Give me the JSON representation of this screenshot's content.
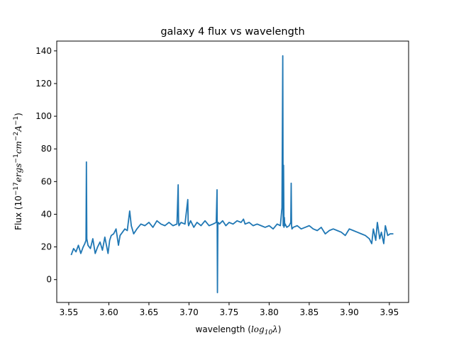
{
  "chart_data": {
    "type": "line",
    "title": "galaxy 4 flux vs wavelength",
    "xlabel_text": "wavelength (",
    "xlabel_math": "log",
    "xlabel_sub": "10",
    "xlabel_lambda": "λ",
    "xlabel_close": ")",
    "ylabel_text": "Flux (10",
    "ylabel_sup1": "−17",
    "ylabel_unit1": "ergs",
    "ylabel_sup2": "−1",
    "ylabel_unit2": "cm",
    "ylabel_sup3": "−2",
    "ylabel_unit3": "A",
    "ylabel_sup4": "−1",
    "ylabel_close": ")",
    "xlim": [
      3.535,
      3.974
    ],
    "ylim": [
      -14,
      146
    ],
    "xticks": [
      3.55,
      3.6,
      3.65,
      3.7,
      3.75,
      3.8,
      3.85,
      3.9,
      3.95
    ],
    "xtick_labels": [
      "3.55",
      "3.60",
      "3.65",
      "3.70",
      "3.75",
      "3.80",
      "3.85",
      "3.90",
      "3.95"
    ],
    "yticks": [
      0,
      20,
      40,
      60,
      80,
      100,
      120,
      140
    ],
    "ytick_labels": [
      "0",
      "20",
      "40",
      "60",
      "80",
      "100",
      "120",
      "140"
    ],
    "grid": false,
    "line_color": "#1f77b4",
    "series": [
      {
        "x": [
          3.553,
          3.556,
          3.559,
          3.562,
          3.565,
          3.568,
          3.57,
          3.5715,
          3.572,
          3.5725,
          3.574,
          3.577,
          3.58,
          3.583,
          3.586,
          3.589,
          3.592,
          3.595,
          3.597,
          3.599,
          3.601,
          3.603,
          3.606,
          3.609,
          3.612,
          3.614,
          3.617,
          3.62,
          3.623,
          3.626,
          3.628,
          3.631,
          3.635,
          3.64,
          3.645,
          3.65,
          3.655,
          3.66,
          3.665,
          3.67,
          3.675,
          3.68,
          3.685,
          3.6865,
          3.687,
          3.6875,
          3.69,
          3.695,
          3.6985,
          3.699,
          3.6995,
          3.702,
          3.706,
          3.71,
          3.715,
          3.72,
          3.725,
          3.73,
          3.734,
          3.735,
          3.7355,
          3.736,
          3.7365,
          3.738,
          3.742,
          3.746,
          3.75,
          3.755,
          3.76,
          3.765,
          3.768,
          3.77,
          3.775,
          3.78,
          3.785,
          3.79,
          3.795,
          3.8,
          3.805,
          3.81,
          3.814,
          3.816,
          3.817,
          3.8175,
          3.818,
          3.8185,
          3.819,
          3.8195,
          3.82,
          3.822,
          3.825,
          3.827,
          3.8275,
          3.828,
          3.8285,
          3.83,
          3.835,
          3.84,
          3.845,
          3.85,
          3.855,
          3.86,
          3.865,
          3.87,
          3.875,
          3.88,
          3.885,
          3.89,
          3.895,
          3.9,
          3.905,
          3.91,
          3.915,
          3.92,
          3.925,
          3.928,
          3.93,
          3.933,
          3.935,
          3.938,
          3.94,
          3.943,
          3.945,
          3.948,
          3.951,
          3.955
        ],
        "y": [
          15,
          19,
          17,
          21,
          16,
          20,
          22,
          24,
          72,
          25,
          21,
          19,
          25,
          16,
          20,
          23,
          18,
          26,
          21,
          16,
          24,
          27,
          28,
          31,
          21,
          27,
          29,
          31,
          30,
          42,
          33,
          28,
          31,
          34,
          33,
          35,
          32,
          36,
          34,
          33,
          35,
          33,
          34,
          58,
          35,
          33,
          35,
          34,
          49,
          35,
          33,
          36,
          32,
          35,
          33,
          36,
          33,
          34,
          35,
          55,
          -8,
          34,
          35,
          34,
          36,
          33,
          35,
          34,
          36,
          35,
          37,
          34,
          35,
          33,
          34,
          33,
          32,
          33,
          31,
          34,
          33,
          44,
          137,
          33,
          70,
          32,
          38,
          33,
          34,
          32,
          33,
          35,
          59,
          33,
          31,
          32,
          33,
          31,
          32,
          33,
          31,
          30,
          32,
          28,
          30,
          31,
          30,
          29,
          27,
          31,
          30,
          29,
          28,
          27,
          25,
          22,
          31,
          24,
          35,
          25,
          29,
          22,
          33,
          27,
          28,
          28
        ]
      }
    ]
  }
}
